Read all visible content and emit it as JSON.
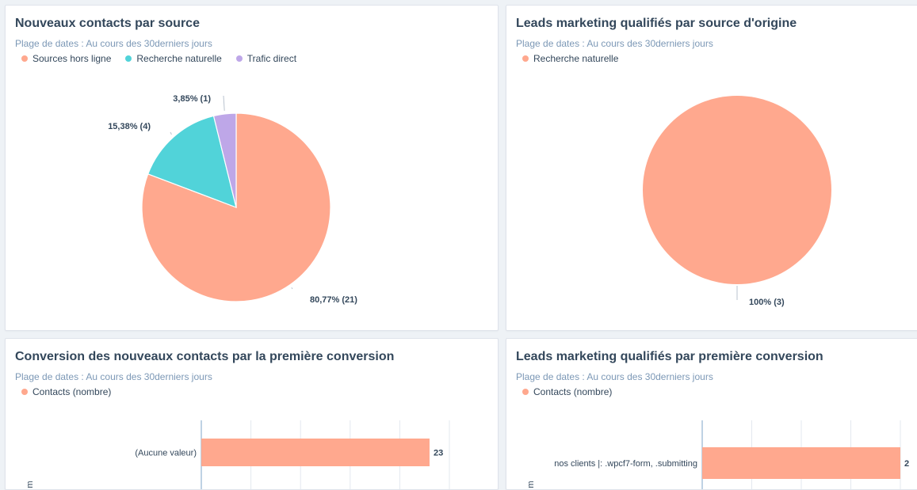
{
  "colors": {
    "salmon": "#ffa88e",
    "teal": "#51d3d9",
    "lavender": "#bea7e8",
    "axis": "#7fa5c9",
    "grid": "#e3e8ef"
  },
  "cards": [
    {
      "title": "Nouveaux contacts par source",
      "subtitle": "Plage de dates : Au cours des 30derniers jours",
      "legend": [
        {
          "label": "Sources hors ligne",
          "color": "#ffa88e"
        },
        {
          "label": "Recherche naturelle",
          "color": "#51d3d9"
        },
        {
          "label": "Trafic direct",
          "color": "#bea7e8"
        }
      ]
    },
    {
      "title": "Leads marketing qualifiés par source d'origine",
      "subtitle": "Plage de dates : Au cours des 30derniers jours",
      "legend": [
        {
          "label": "Recherche naturelle",
          "color": "#ffa88e"
        }
      ]
    },
    {
      "title": "Conversion des nouveaux contacts par la première conversion",
      "subtitle": "Plage de dates : Au cours des 30derniers jours",
      "legend": [
        {
          "label": "Contacts (nombre)",
          "color": "#ffa88e"
        }
      ]
    },
    {
      "title": "Leads marketing qualifiés par première conversion",
      "subtitle": "Plage de dates : Au cours des 30derniers jours",
      "legend": [
        {
          "label": "Contacts (nombre)",
          "color": "#ffa88e"
        }
      ]
    }
  ],
  "chart_data": [
    {
      "type": "pie",
      "title": "Nouveaux contacts par source",
      "slices": [
        {
          "name": "Sources hors ligne",
          "value": 21,
          "label": "80,77% (21)",
          "color": "#ffa88e"
        },
        {
          "name": "Recherche naturelle",
          "value": 4,
          "label": "15,38% (4)",
          "color": "#51d3d9"
        },
        {
          "name": "Trafic direct",
          "value": 1,
          "label": "3,85% (1)",
          "color": "#bea7e8"
        }
      ]
    },
    {
      "type": "pie",
      "title": "Leads marketing qualifiés par source d'origine",
      "slices": [
        {
          "name": "Recherche naturelle",
          "value": 3,
          "label": "100% (3)",
          "color": "#ffa88e"
        }
      ]
    },
    {
      "type": "bar",
      "orientation": "horizontal",
      "title": "Conversion des nouveaux contacts par la première conversion",
      "categories": [
        "(Aucune valeur)"
      ],
      "values": [
        23
      ],
      "value_labels": [
        "23"
      ],
      "xlim": [
        0,
        25
      ],
      "ylabel": "m"
    },
    {
      "type": "bar",
      "orientation": "horizontal",
      "title": "Leads marketing qualifiés par première conversion",
      "categories": [
        "nos clients |: .wpcf7-form, .submitting"
      ],
      "values": [
        2
      ],
      "value_labels": [
        "2"
      ],
      "xlim": [
        0,
        2
      ],
      "ylabel": "m"
    }
  ]
}
